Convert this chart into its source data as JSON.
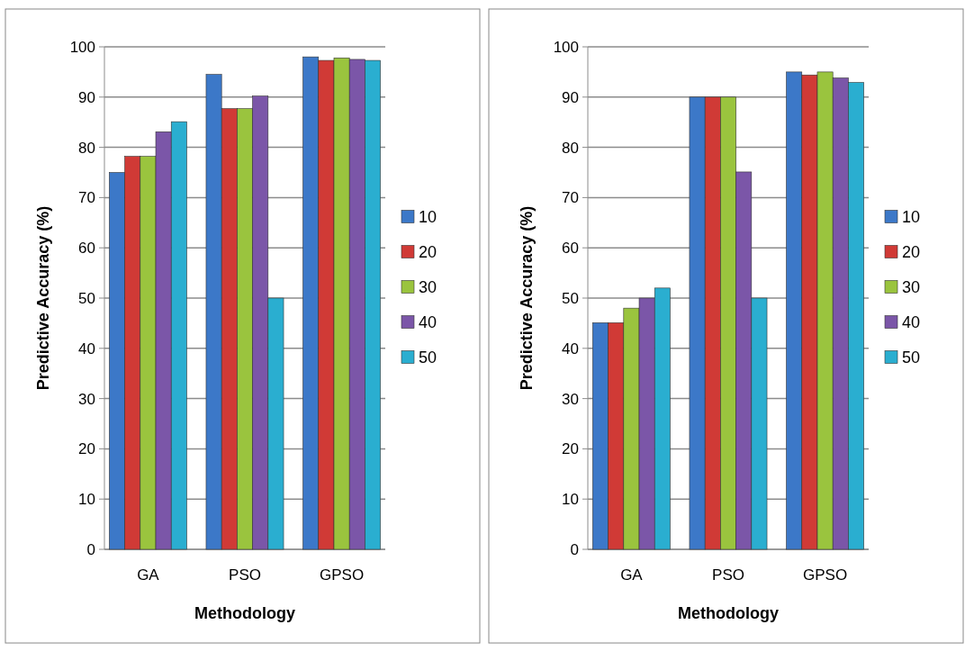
{
  "chart_data": [
    {
      "type": "bar",
      "xlabel": "Methodology",
      "ylabel": "Predictive Accuracy (%)",
      "categories": [
        "GA",
        "PSO",
        "GPSO"
      ],
      "series": [
        {
          "name": "10",
          "color": "#3c78c8",
          "values": [
            75,
            94.5,
            98
          ]
        },
        {
          "name": "20",
          "color": "#d03a36",
          "values": [
            78.2,
            87.7,
            97.3
          ]
        },
        {
          "name": "30",
          "color": "#9ac43e",
          "values": [
            78.2,
            87.7,
            97.8
          ]
        },
        {
          "name": "40",
          "color": "#7b56a8",
          "values": [
            83.1,
            90.2,
            97.5
          ]
        },
        {
          "name": "50",
          "color": "#2aaed0",
          "values": [
            85.1,
            50,
            97.3
          ]
        }
      ],
      "ylim": [
        0,
        100
      ],
      "yticks": [
        0,
        10,
        20,
        30,
        40,
        50,
        60,
        70,
        80,
        90,
        100
      ],
      "grid": "y",
      "legend": "right"
    },
    {
      "type": "bar",
      "xlabel": "Methodology",
      "ylabel": "Predictive Accuracy (%)",
      "categories": [
        "GA",
        "PSO",
        "GPSO"
      ],
      "series": [
        {
          "name": "10",
          "color": "#3c78c8",
          "values": [
            45.1,
            90,
            95
          ]
        },
        {
          "name": "20",
          "color": "#d03a36",
          "values": [
            45.1,
            90,
            94.4
          ]
        },
        {
          "name": "30",
          "color": "#9ac43e",
          "values": [
            48,
            90,
            95
          ]
        },
        {
          "name": "40",
          "color": "#7b56a8",
          "values": [
            50,
            75.1,
            93.8
          ]
        },
        {
          "name": "50",
          "color": "#2aaed0",
          "values": [
            52,
            50,
            92.9
          ]
        }
      ],
      "ylim": [
        0,
        100
      ],
      "yticks": [
        0,
        10,
        20,
        30,
        40,
        50,
        60,
        70,
        80,
        90,
        100
      ],
      "grid": "y",
      "legend": "right"
    }
  ]
}
